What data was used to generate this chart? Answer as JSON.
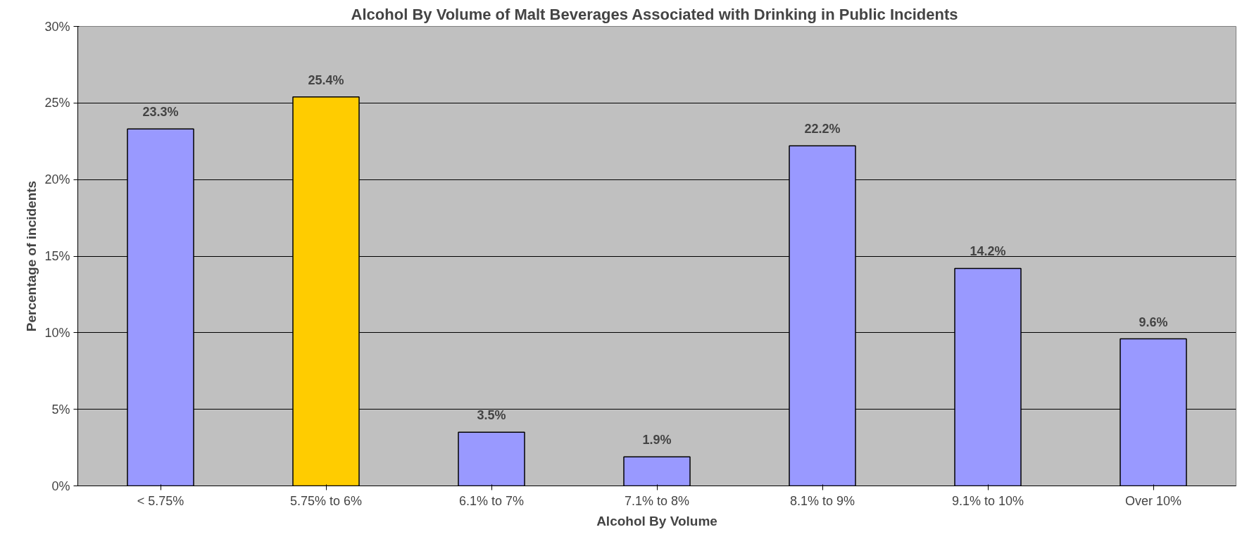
{
  "chart_data": {
    "type": "bar",
    "title": "Alcohol By Volume of Malt Beverages  Associated with Drinking in Public Incidents",
    "xlabel": "Alcohol By Volume",
    "ylabel": "Percentage of incidents",
    "categories": [
      "< 5.75%",
      "5.75% to 6%",
      "6.1% to 7%",
      "7.1% to 8%",
      "8.1% to 9%",
      "9.1% to 10%",
      "Over 10%"
    ],
    "values": [
      23.3,
      25.4,
      3.5,
      1.9,
      22.2,
      14.2,
      9.6
    ],
    "colors": [
      "#9999ff",
      "#ffcc00",
      "#9999ff",
      "#9999ff",
      "#9999ff",
      "#9999ff",
      "#9999ff"
    ],
    "value_labels": [
      "23.3%",
      "25.4%",
      "3.5%",
      "1.9%",
      "22.2%",
      "14.2%",
      "9.6%"
    ],
    "ylim": [
      0,
      30
    ],
    "yticks": [
      {
        "value": 0,
        "label": "0%"
      },
      {
        "value": 5,
        "label": "5%"
      },
      {
        "value": 10,
        "label": "10%"
      },
      {
        "value": 15,
        "label": "15%"
      },
      {
        "value": 20,
        "label": "20%"
      },
      {
        "value": 25,
        "label": "25%"
      },
      {
        "value": 30,
        "label": "30%"
      }
    ],
    "grid": "y"
  }
}
